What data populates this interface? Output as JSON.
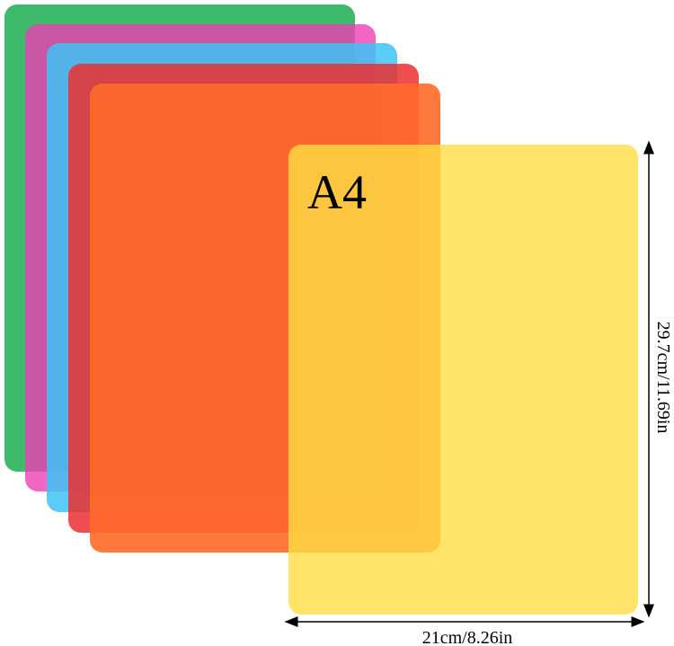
{
  "label": "A4",
  "width": "21cm/8.26in",
  "height": "29.7cm/11.69in"
}
